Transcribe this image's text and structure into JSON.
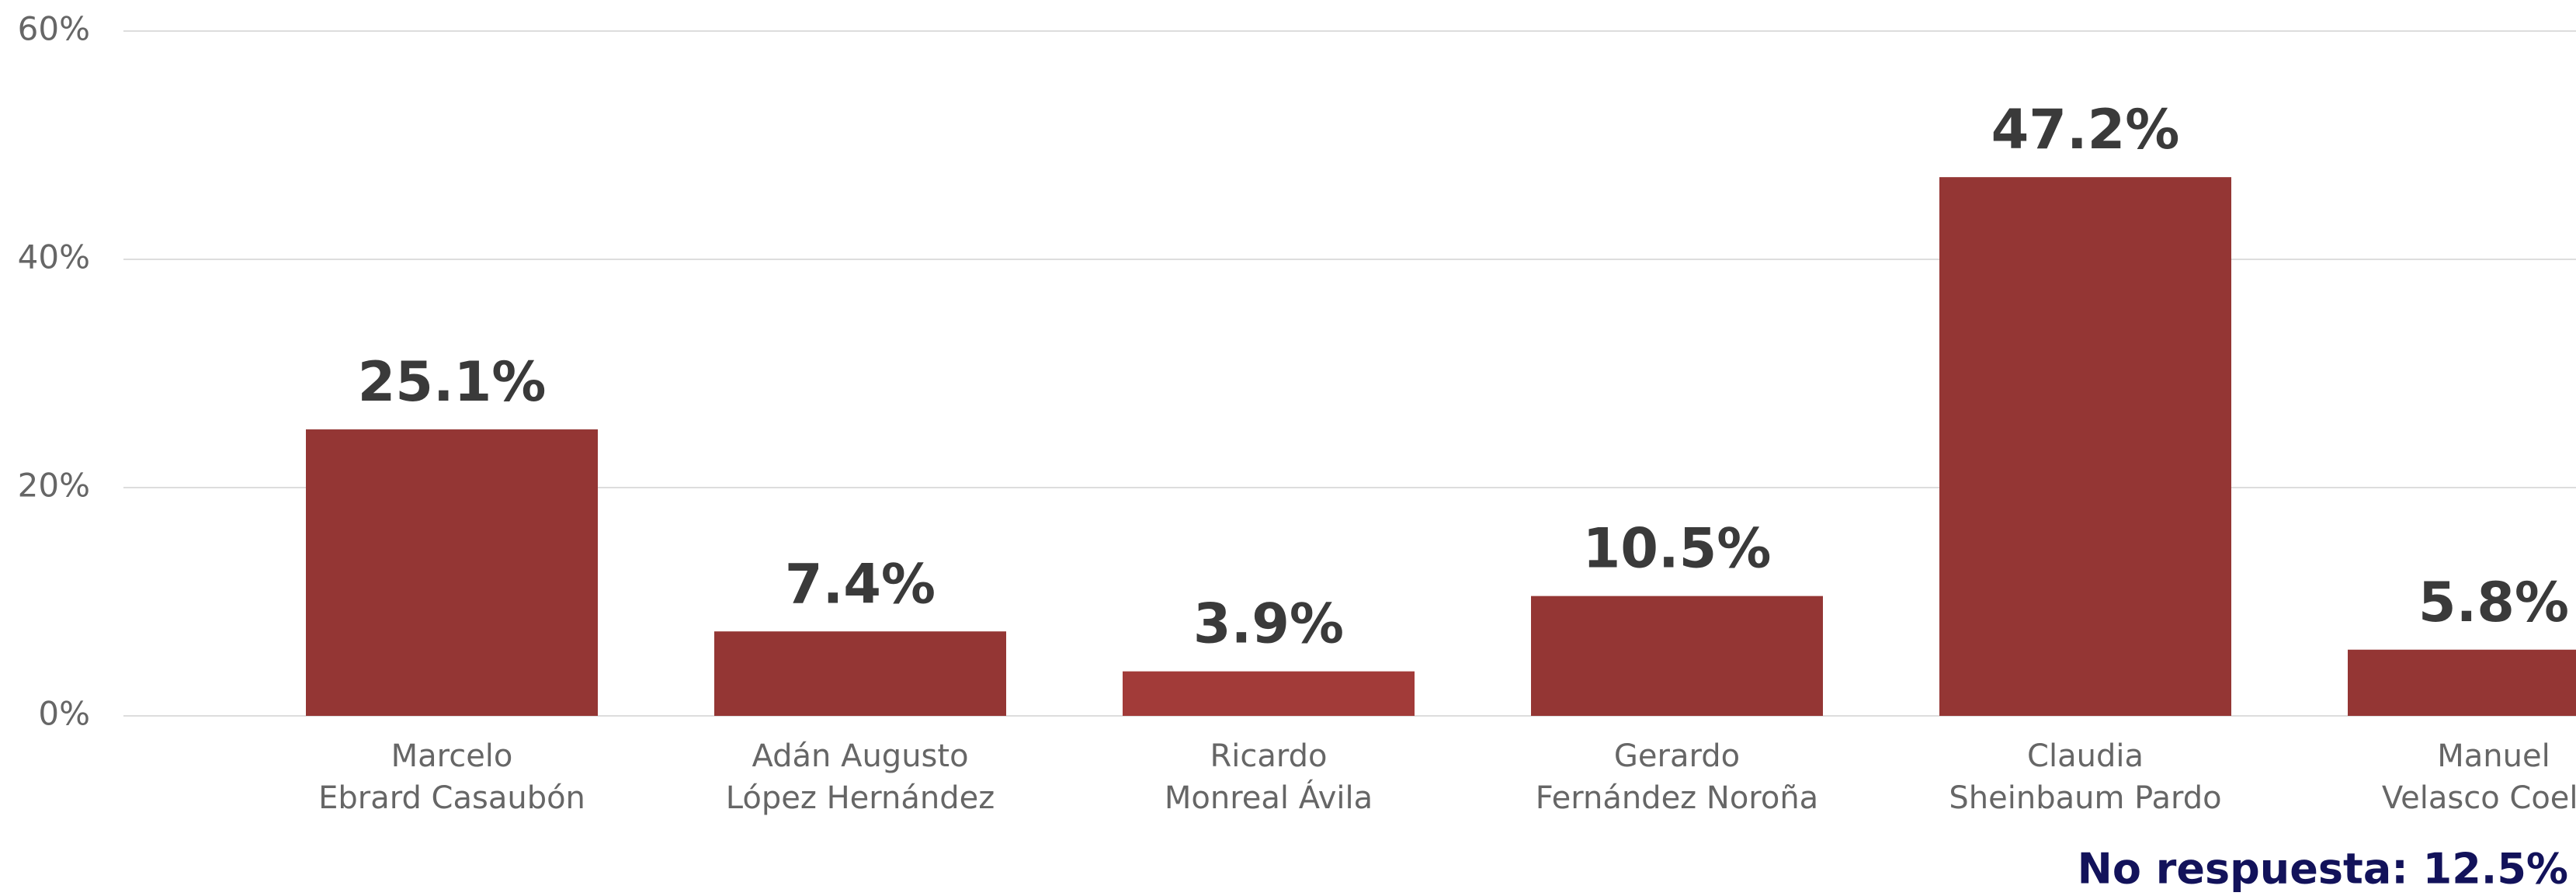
{
  "chart_data": {
    "type": "bar",
    "categories": [
      [
        "Marcelo",
        "Ebrard Casaubón"
      ],
      [
        "Adán Augusto",
        "López Hernández"
      ],
      [
        "Ricardo",
        "Monreal Ávila"
      ],
      [
        "Gerardo",
        "Fernández Noroña"
      ],
      [
        "Claudia",
        "Sheinbaum Pardo"
      ],
      [
        "Manuel",
        "Velasco Coello"
      ]
    ],
    "values": [
      25.1,
      7.4,
      3.9,
      10.5,
      47.2,
      5.8
    ],
    "value_labels": [
      "25.1%",
      "7.4%",
      "3.9%",
      "10.5%",
      "47.2%",
      "5.8%"
    ],
    "colors": [
      "#943634",
      "#943634",
      "#a23b39",
      "#943634",
      "#943634",
      "#943634"
    ],
    "ylim": [
      0,
      60
    ],
    "yticks": [
      {
        "value": 0,
        "label": "0%"
      },
      {
        "value": 20,
        "label": "20%"
      },
      {
        "value": 40,
        "label": "40%"
      },
      {
        "value": 60,
        "label": "60%"
      }
    ],
    "grid": true,
    "annotation": "No respuesta: 12.5%"
  }
}
